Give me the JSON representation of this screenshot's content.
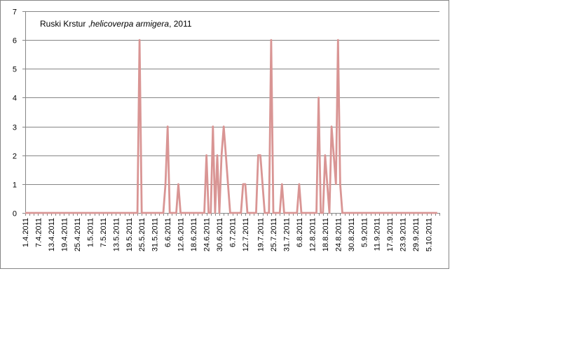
{
  "chart_data": {
    "type": "line",
    "title_parts": [
      "Ruski Krstur ,",
      "helicoverpa armigera",
      ", 2011"
    ],
    "xlabel": "",
    "ylabel": "",
    "ylim": [
      0,
      7
    ],
    "y_ticks": [
      "0",
      "1",
      "2",
      "3",
      "4",
      "5",
      "6",
      "7"
    ],
    "grid": true,
    "legend": "none",
    "line_color": "#d99594",
    "x_tick_labels": [
      "1.4.2011",
      "7.4.2011",
      "13.4.2011",
      "19.4.2011",
      "25.4.2011",
      "1.5.2011",
      "7.5.2011",
      "13.5.2011",
      "19.5.2011",
      "25.5.2011",
      "31.5.2011",
      "6.6.2011",
      "12.6.2011",
      "18.6.2011",
      "24.6.2011",
      "30.6.2011",
      "6.7.2011",
      "12.7.2011",
      "19.7.2011",
      "25.7.2011",
      "31.7.2011",
      "6.8.2011",
      "12.8.2011",
      "18.8.2011",
      "24.8.2011",
      "30.8.2011",
      "5.9.2011",
      "11.9.2011",
      "17.9.2011",
      "23.9.2011",
      "29.9.2011",
      "5.10.2011"
    ],
    "series": [
      {
        "points": [
          [
            "1.4.2011",
            0
          ],
          [
            "7.4.2011",
            0
          ],
          [
            "13.4.2011",
            0
          ],
          [
            "19.4.2011",
            0
          ],
          [
            "25.4.2011",
            0
          ],
          [
            "1.5.2011",
            0
          ],
          [
            "7.5.2011",
            0
          ],
          [
            "13.5.2011",
            0
          ],
          [
            "19.5.2011",
            0
          ],
          [
            "23.5.2011",
            0
          ],
          [
            "24.5.2011",
            6
          ],
          [
            "25.5.2011",
            0
          ],
          [
            "31.5.2011",
            0
          ],
          [
            "4.6.2011",
            0
          ],
          [
            "5.6.2011",
            1
          ],
          [
            "6.6.2011",
            3
          ],
          [
            "7.6.2011",
            0
          ],
          [
            "9.6.2011",
            0
          ],
          [
            "10.6.2011",
            0
          ],
          [
            "11.6.2011",
            1
          ],
          [
            "12.6.2011",
            0
          ],
          [
            "18.6.2011",
            0
          ],
          [
            "23.6.2011",
            0
          ],
          [
            "24.6.2011",
            2
          ],
          [
            "25.6.2011",
            0
          ],
          [
            "26.6.2011",
            0
          ],
          [
            "27.6.2011",
            3
          ],
          [
            "28.6.2011",
            0
          ],
          [
            "29.6.2011",
            2
          ],
          [
            "30.6.2011",
            0
          ],
          [
            "1.7.2011",
            2
          ],
          [
            "2.7.2011",
            3
          ],
          [
            "3.7.2011",
            2
          ],
          [
            "4.7.2011",
            1
          ],
          [
            "5.7.2011",
            0
          ],
          [
            "10.7.2011",
            0
          ],
          [
            "11.7.2011",
            1
          ],
          [
            "12.7.2011",
            1
          ],
          [
            "13.7.2011",
            0
          ],
          [
            "17.7.2011",
            0
          ],
          [
            "18.7.2011",
            2
          ],
          [
            "19.7.2011",
            2
          ],
          [
            "21.7.2011",
            0
          ],
          [
            "23.7.2011",
            0
          ],
          [
            "24.7.2011",
            6
          ],
          [
            "25.7.2011",
            0
          ],
          [
            "28.7.2011",
            0
          ],
          [
            "29.7.2011",
            1
          ],
          [
            "30.7.2011",
            0
          ],
          [
            "5.8.2011",
            0
          ],
          [
            "6.8.2011",
            1
          ],
          [
            "7.8.2011",
            0
          ],
          [
            "14.8.2011",
            0
          ],
          [
            "15.8.2011",
            4
          ],
          [
            "16.8.2011",
            0
          ],
          [
            "17.8.2011",
            0
          ],
          [
            "18.8.2011",
            2
          ],
          [
            "19.8.2011",
            1
          ],
          [
            "20.8.2011",
            0
          ],
          [
            "21.8.2011",
            3
          ],
          [
            "22.8.2011",
            2
          ],
          [
            "23.8.2011",
            1
          ],
          [
            "24.8.2011",
            6
          ],
          [
            "25.8.2011",
            1
          ],
          [
            "26.8.2011",
            0
          ],
          [
            "30.8.2011",
            0
          ],
          [
            "5.9.2011",
            0
          ],
          [
            "11.9.2011",
            0
          ],
          [
            "17.9.2011",
            0
          ],
          [
            "23.9.2011",
            0
          ],
          [
            "29.9.2011",
            0
          ],
          [
            "5.10.2011",
            0
          ],
          [
            "9.10.2011",
            0
          ]
        ]
      }
    ]
  }
}
